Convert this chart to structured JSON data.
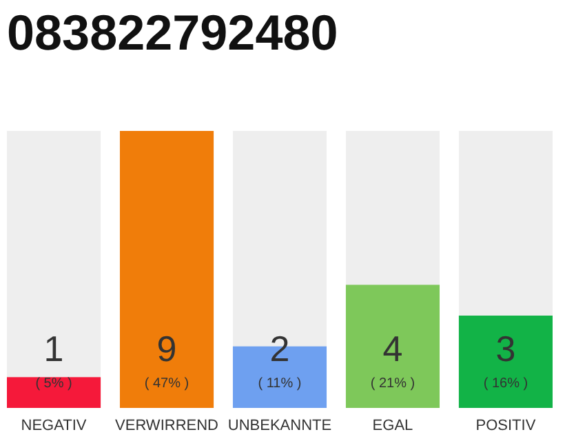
{
  "chart_data": {
    "type": "bar",
    "title": "083822792480",
    "categories": [
      "NEGATIV",
      "VERWIRREND",
      "UNBEKANNTE",
      "EGAL",
      "POSITIV"
    ],
    "values": [
      1,
      9,
      2,
      4,
      3
    ],
    "colors": [
      "#f5193a",
      "#f07d0a",
      "#6ea0f0",
      "#7ec85a",
      "#12b347"
    ],
    "data_labels": true,
    "annotations": [
      "( 5% )",
      "( 47% )",
      "( 11% )",
      "( 21% )",
      "( 16% )"
    ]
  }
}
